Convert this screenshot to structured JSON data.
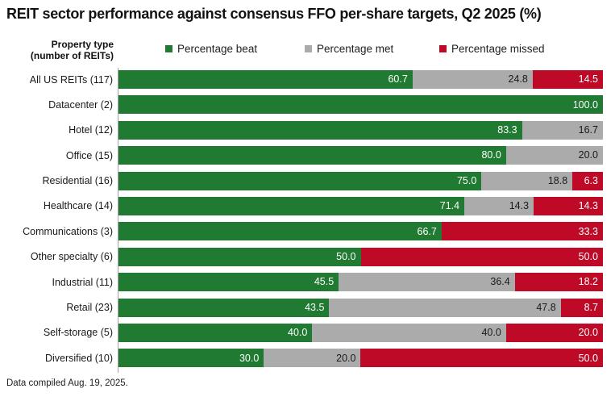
{
  "title": "REIT sector performance against consensus FFO per-share targets, Q2 2025 (%)",
  "axis_label": {
    "line1": "Property type",
    "line2": "(number of REITs)"
  },
  "footer": "Data compiled Aug. 19, 2025.",
  "chart_data": {
    "type": "bar",
    "orientation": "horizontal",
    "stacked": true,
    "grid": false,
    "legend_position": "top",
    "xlim": [
      0,
      100
    ],
    "value_label_format": "one_decimal",
    "categories": [
      "All US REITs (117)",
      "Datacenter (2)",
      "Hotel (12)",
      "Office (15)",
      "Residential (16)",
      "Healthcare (14)",
      "Communications (3)",
      "Other specialty (6)",
      "Industrial (11)",
      "Retail (23)",
      "Self-storage (5)",
      "Diversified (10)"
    ],
    "series": [
      {
        "key": "beat",
        "name": "Percentage beat",
        "color": "#207a31",
        "label_color": "#ffffff",
        "values": [
          60.7,
          100.0,
          83.3,
          80.0,
          75.0,
          71.4,
          66.7,
          50.0,
          45.5,
          43.5,
          40.0,
          30.0
        ]
      },
      {
        "key": "met",
        "name": "Percentage met",
        "color": "#ababab",
        "label_color": "#1a1a1a",
        "values": [
          24.8,
          0,
          16.7,
          20.0,
          18.8,
          14.3,
          0,
          0,
          36.4,
          47.8,
          40.0,
          20.0
        ]
      },
      {
        "key": "missed",
        "name": "Percentage missed",
        "color": "#be0a26",
        "label_color": "#ffffff",
        "values": [
          14.5,
          0,
          0,
          0,
          6.3,
          14.3,
          33.3,
          50.0,
          18.2,
          8.7,
          20.0,
          50.0
        ]
      }
    ]
  }
}
